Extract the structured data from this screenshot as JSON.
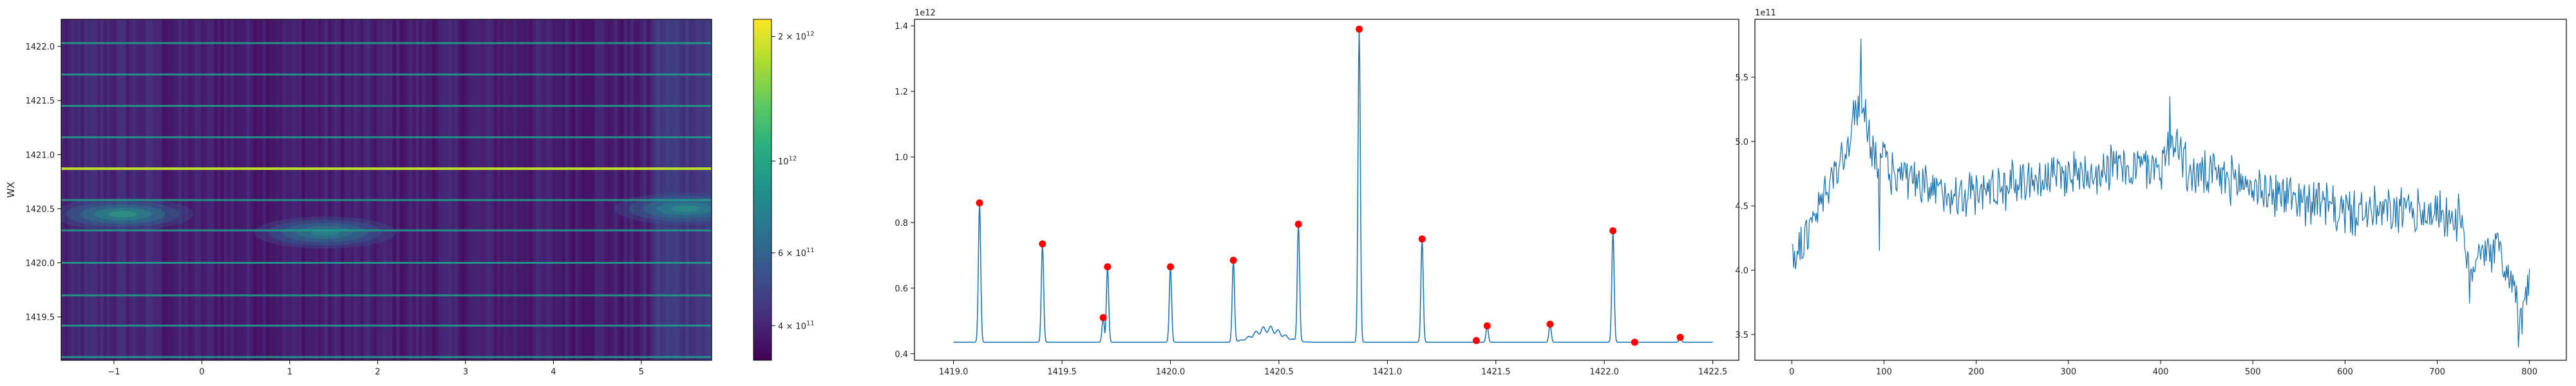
{
  "chart_data": [
    {
      "type": "heatmap",
      "colormap": "viridis",
      "ylabel": "WX",
      "xlim": [
        -1.6,
        5.8
      ],
      "ylim": [
        1419.1,
        1422.25
      ],
      "xticks": [
        "−1",
        "0",
        "1",
        "2",
        "3",
        "4",
        "5"
      ],
      "xtick_values": [
        -1,
        0,
        1,
        2,
        3,
        4,
        5
      ],
      "yticks": [
        "1419.5",
        "1420.0",
        "1420.5",
        "1421.0",
        "1421.5",
        "1422.0"
      ],
      "ytick_values": [
        1419.5,
        1420.0,
        1420.5,
        1421.0,
        1421.5,
        1422.0
      ],
      "horizontal_bands": [
        1419.13,
        1419.42,
        1419.7,
        1420.0,
        1420.3,
        1420.58,
        1420.87,
        1421.16,
        1421.45,
        1421.74,
        1422.03
      ],
      "bright_band": 1420.87,
      "hotspots": [
        {
          "x": -0.9,
          "y": 1420.45,
          "strength": 0.55
        },
        {
          "x": 1.4,
          "y": 1420.28,
          "strength": 0.45
        },
        {
          "x": 5.5,
          "y": 1420.5,
          "strength": 0.5
        }
      ],
      "colorbar": {
        "scale": "log",
        "range": [
          330000000000.0,
          2200000000000.0
        ],
        "ticks": [
          {
            "value": 2000000000000.0,
            "base": "2 × 10",
            "exp": "12"
          },
          {
            "value": 1000000000000.0,
            "base": "10",
            "exp": "12"
          },
          {
            "value": 600000000000.0,
            "base": "6 × 10",
            "exp": "11"
          },
          {
            "value": 400000000000.0,
            "base": "4 × 10",
            "exp": "11"
          }
        ]
      }
    },
    {
      "type": "line",
      "color": "#1f77b4",
      "peak_marker_color": "#ff0000",
      "offset_text": "1e12",
      "xlim": [
        1418.82,
        1422.62
      ],
      "ylim": [
        0.38,
        1.42
      ],
      "xticks": [
        "1419.0",
        "1419.5",
        "1420.0",
        "1420.5",
        "1421.0",
        "1421.5",
        "1422.0",
        "1422.5"
      ],
      "xtick_values": [
        1419.0,
        1419.5,
        1420.0,
        1420.5,
        1421.0,
        1421.5,
        1422.0,
        1422.5
      ],
      "yticks": [
        "0.4",
        "0.6",
        "0.8",
        "1.0",
        "1.2",
        "1.4"
      ],
      "ytick_values": [
        0.4,
        0.6,
        0.8,
        1.0,
        1.2,
        1.4
      ],
      "baseline": 0.435,
      "x_range": [
        1419.0,
        1422.5
      ],
      "peaks": [
        {
          "x": 1419.12,
          "y": 0.86
        },
        {
          "x": 1419.41,
          "y": 0.735
        },
        {
          "x": 1419.69,
          "y": 0.51
        },
        {
          "x": 1419.71,
          "y": 0.665
        },
        {
          "x": 1420.0,
          "y": 0.665
        },
        {
          "x": 1420.29,
          "y": 0.685
        },
        {
          "x": 1420.59,
          "y": 0.795
        },
        {
          "x": 1420.87,
          "y": 1.39
        },
        {
          "x": 1421.16,
          "y": 0.75
        },
        {
          "x": 1421.41,
          "y": 0.44
        },
        {
          "x": 1421.46,
          "y": 0.485
        },
        {
          "x": 1421.75,
          "y": 0.49
        },
        {
          "x": 1422.04,
          "y": 0.775
        },
        {
          "x": 1422.14,
          "y": 0.435
        },
        {
          "x": 1422.35,
          "y": 0.45
        }
      ],
      "bump": {
        "x_start": 1420.3,
        "x_end": 1420.7,
        "center": 1420.45,
        "height": 0.05
      }
    },
    {
      "type": "line",
      "color": "#1f77b4",
      "offset_text": "1e11",
      "xlim": [
        -40,
        840
      ],
      "ylim": [
        3.3,
        5.95
      ],
      "xticks": [
        "0",
        "100",
        "200",
        "300",
        "400",
        "500",
        "600",
        "700",
        "800"
      ],
      "xtick_values": [
        0,
        100,
        200,
        300,
        400,
        500,
        600,
        700,
        800
      ],
      "yticks": [
        "3.5",
        "4.0",
        "4.5",
        "5.0",
        "5.5"
      ],
      "ytick_values": [
        3.5,
        4.0,
        4.5,
        5.0,
        5.5
      ],
      "n_points": 800,
      "trend": [
        [
          0,
          4.1
        ],
        [
          20,
          4.3
        ],
        [
          40,
          4.65
        ],
        [
          60,
          4.95
        ],
        [
          75,
          5.35
        ],
        [
          90,
          4.9
        ],
        [
          110,
          4.75
        ],
        [
          150,
          4.6
        ],
        [
          200,
          4.6
        ],
        [
          250,
          4.7
        ],
        [
          300,
          4.75
        ],
        [
          350,
          4.8
        ],
        [
          400,
          4.8
        ],
        [
          415,
          5.05
        ],
        [
          430,
          4.75
        ],
        [
          480,
          4.7
        ],
        [
          520,
          4.6
        ],
        [
          560,
          4.55
        ],
        [
          600,
          4.45
        ],
        [
          650,
          4.45
        ],
        [
          700,
          4.45
        ],
        [
          725,
          4.4
        ],
        [
          735,
          3.9
        ],
        [
          745,
          4.2
        ],
        [
          765,
          4.15
        ],
        [
          780,
          3.95
        ],
        [
          790,
          3.6
        ],
        [
          800,
          3.9
        ]
      ],
      "noise_amplitude": 0.22,
      "spikes": [
        [
          75,
          5.8
        ],
        [
          410,
          5.35
        ],
        [
          95,
          4.15
        ],
        [
          788,
          3.4
        ]
      ]
    }
  ]
}
